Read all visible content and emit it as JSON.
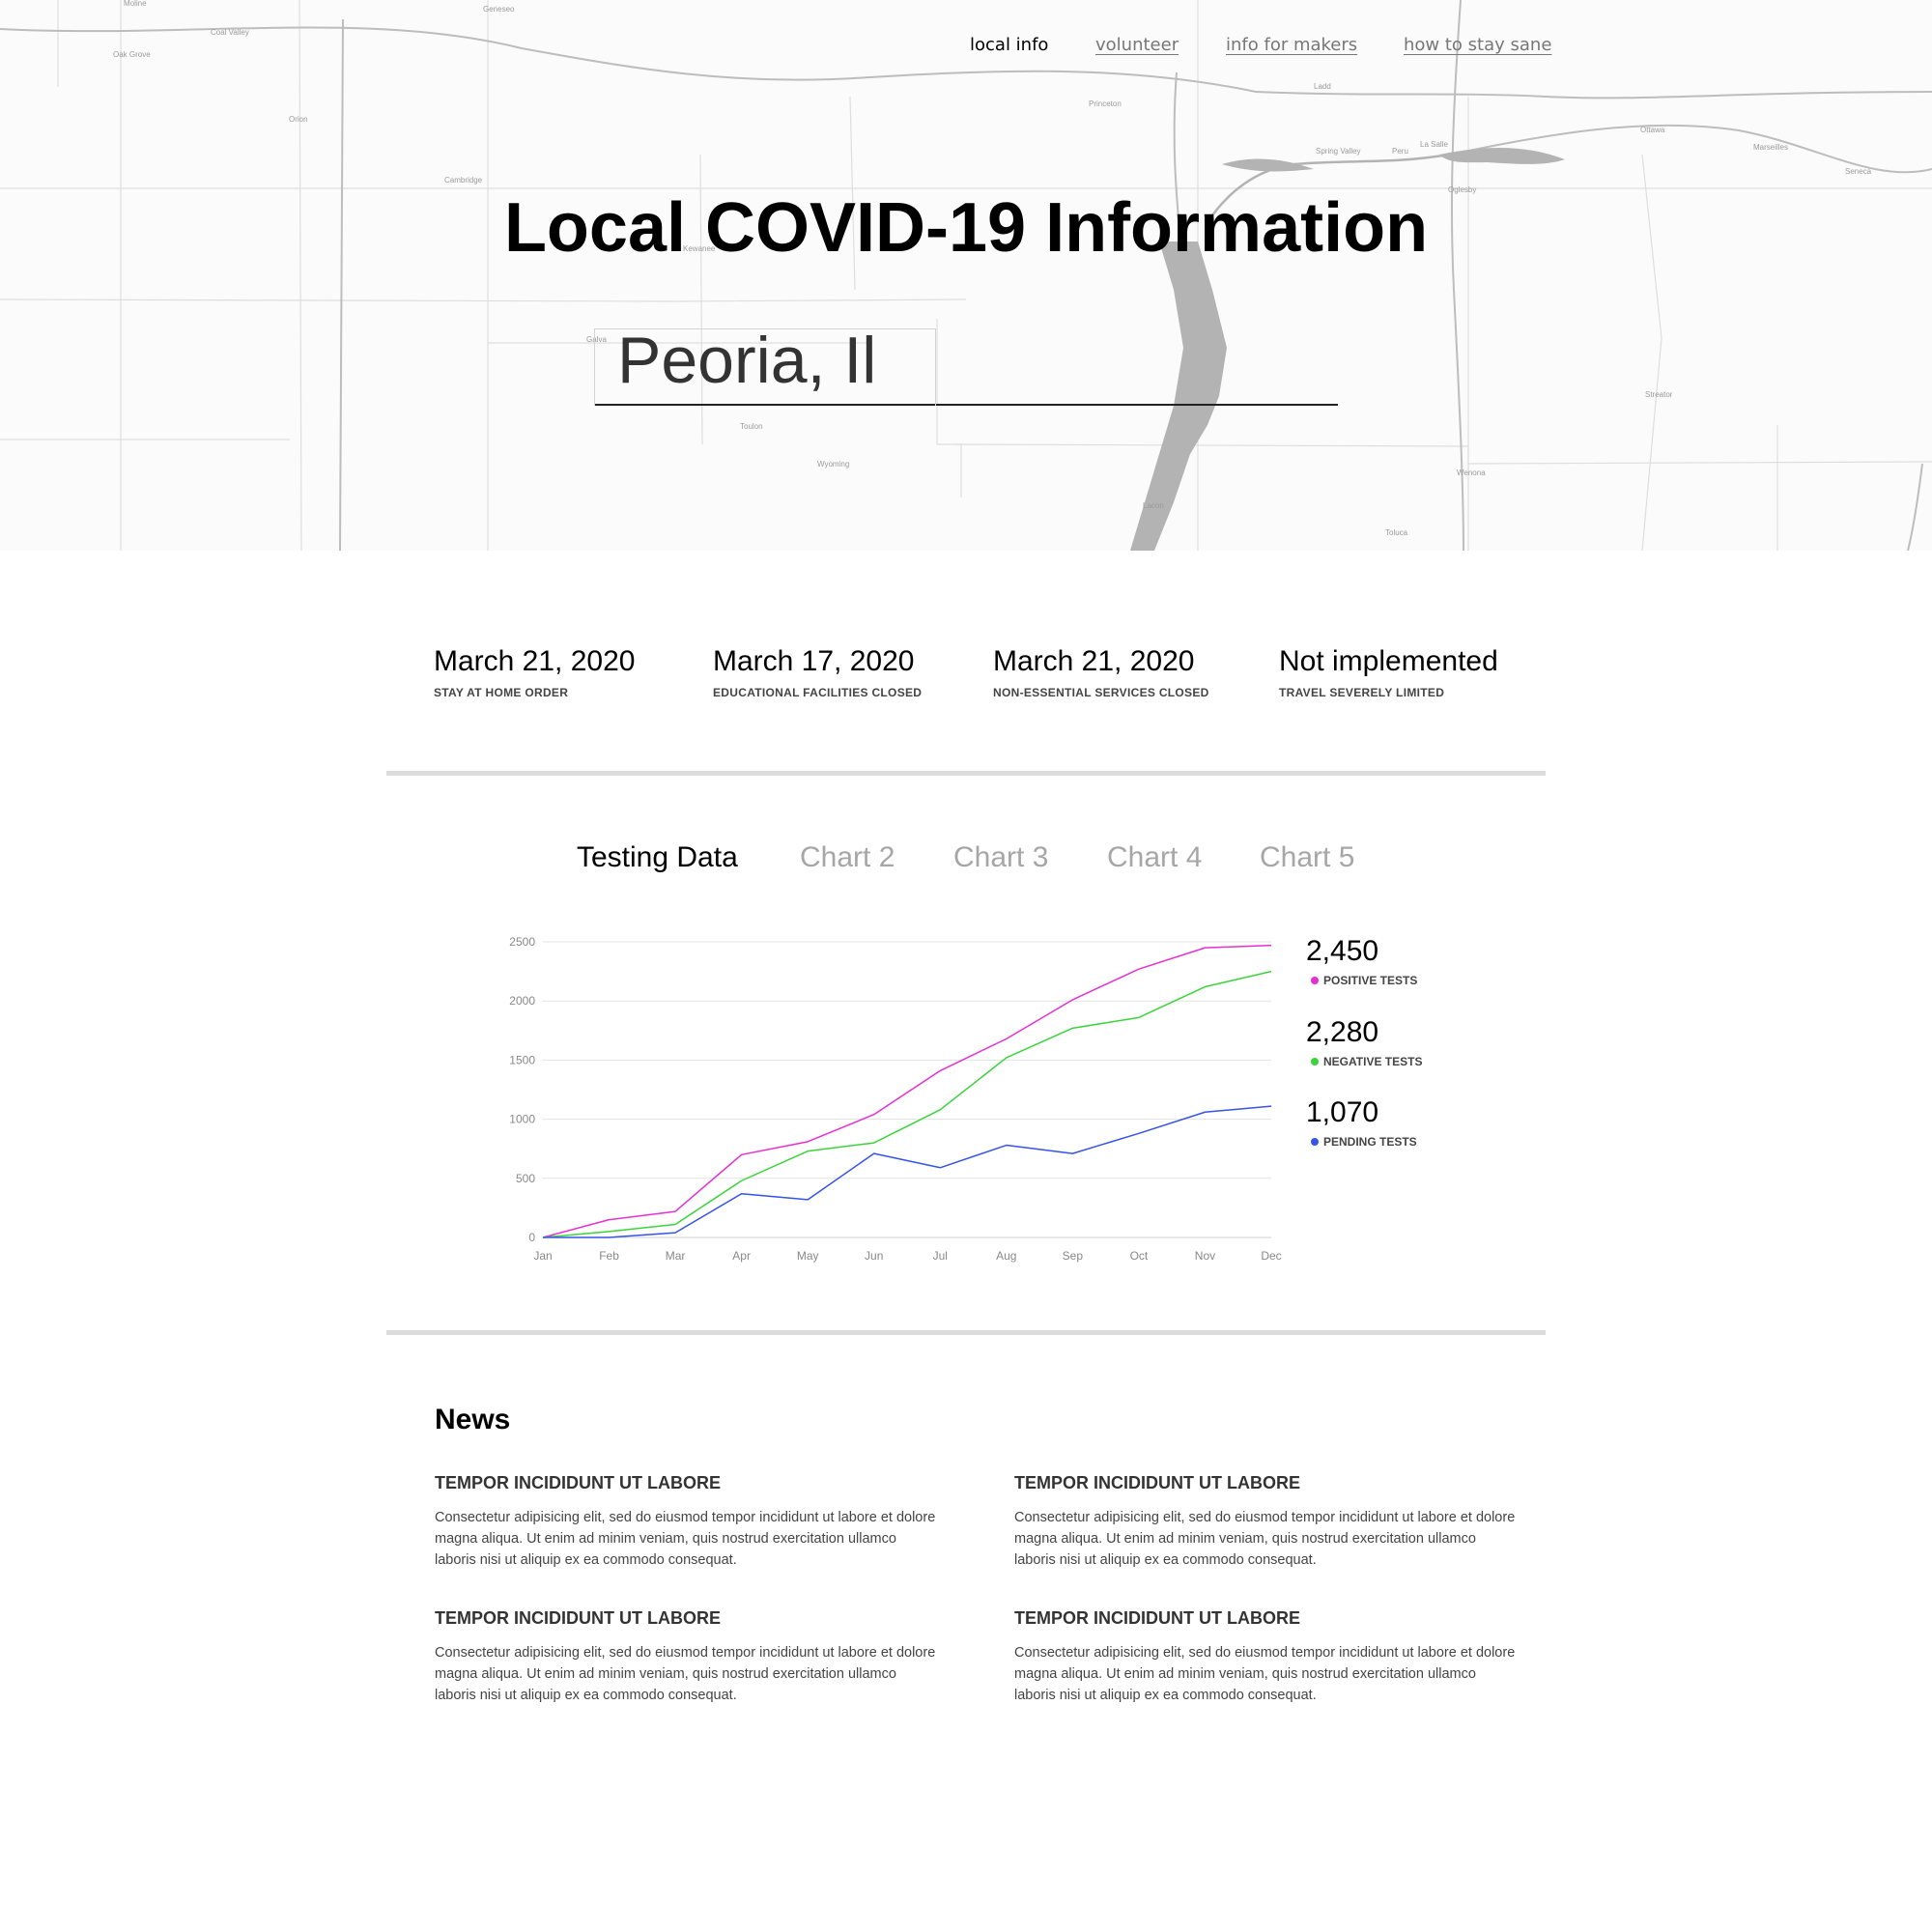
{
  "nav": {
    "items": [
      {
        "label": "local info",
        "active": true
      },
      {
        "label": "volunteer",
        "active": false
      },
      {
        "label": "info for makers",
        "active": false
      },
      {
        "label": "how to stay sane",
        "active": false
      }
    ]
  },
  "hero": {
    "title": "Local COVID-19 Information",
    "location_value": "Peoria, Il"
  },
  "map": {
    "place_labels": [
      "Moline",
      "Coal Valley",
      "Geneseo",
      "Oak Grove",
      "Orion",
      "Cambridge",
      "Kewanee",
      "Galva",
      "Toulon",
      "Wyoming",
      "Princeton",
      "Ladd",
      "Spring Valley",
      "Peru",
      "La Salle",
      "Ottawa",
      "Marseilles",
      "Seneca",
      "Oglesby",
      "Streator",
      "Wenona",
      "Lacon",
      "Toluca"
    ]
  },
  "status": [
    {
      "date": "March 21, 2020",
      "label": "STAY AT HOME ORDER"
    },
    {
      "date": "March 17, 2020",
      "label": "EDUCATIONAL FACILITIES CLOSED"
    },
    {
      "date": "March 21, 2020",
      "label": "NON-ESSENTIAL SERVICES CLOSED"
    },
    {
      "date": "Not implemented",
      "label": "TRAVEL SEVERELY LIMITED"
    }
  ],
  "chart_tabs": [
    {
      "label": "Testing Data",
      "active": true
    },
    {
      "label": "Chart 2",
      "active": false
    },
    {
      "label": "Chart 3",
      "active": false
    },
    {
      "label": "Chart 4",
      "active": false
    },
    {
      "label": "Chart 5",
      "active": false
    }
  ],
  "chart_data": {
    "type": "line",
    "x": [
      "Jan",
      "Feb",
      "Mar",
      "Apr",
      "May",
      "Jun",
      "Jul",
      "Aug",
      "Sep",
      "Oct",
      "Nov",
      "Dec"
    ],
    "ylim": [
      0,
      2500
    ],
    "yticks": [
      0,
      500,
      1000,
      1500,
      2000,
      2500
    ],
    "grid": true,
    "legend_position": "right",
    "series": [
      {
        "name": "POSITIVE TESTS",
        "total": "2,450",
        "color": "#e62fd3",
        "values": [
          0,
          150,
          220,
          700,
          810,
          1040,
          1410,
          1680,
          2010,
          2270,
          2450,
          2470
        ]
      },
      {
        "name": "NEGATIVE TESTS",
        "total": "2,280",
        "color": "#3ad43a",
        "values": [
          0,
          50,
          110,
          480,
          730,
          800,
          1080,
          1520,
          1770,
          1860,
          2120,
          2250
        ]
      },
      {
        "name": "PENDING TESTS",
        "total": "1,070",
        "color": "#3553e6",
        "values": [
          0,
          0,
          40,
          370,
          320,
          710,
          590,
          780,
          710,
          880,
          1060,
          1110
        ]
      }
    ]
  },
  "news": {
    "title": "News",
    "items": [
      {
        "heading": "TEMPOR INCIDIDUNT UT LABORE",
        "body": "Consectetur adipisicing elit, sed do eiusmod tempor incididunt ut labore et dolore magna aliqua. Ut enim ad minim veniam, quis nostrud exercitation ullamco laboris nisi ut aliquip ex ea commodo consequat."
      },
      {
        "heading": "TEMPOR INCIDIDUNT UT LABORE",
        "body": "Consectetur adipisicing elit, sed do eiusmod tempor incididunt ut labore et dolore magna aliqua. Ut enim ad minim veniam, quis nostrud exercitation ullamco laboris nisi ut aliquip ex ea commodo consequat."
      },
      {
        "heading": "TEMPOR INCIDIDUNT UT LABORE",
        "body": "Consectetur adipisicing elit, sed do eiusmod tempor incididunt ut labore et dolore magna aliqua. Ut enim ad minim veniam, quis nostrud exercitation ullamco laboris nisi ut aliquip ex ea commodo consequat."
      },
      {
        "heading": "TEMPOR INCIDIDUNT UT LABORE",
        "body": "Consectetur adipisicing elit, sed do eiusmod tempor incididunt ut labore et dolore magna aliqua. Ut enim ad minim veniam, quis nostrud exercitation ullamco laboris nisi ut aliquip ex ea commodo consequat."
      }
    ]
  }
}
